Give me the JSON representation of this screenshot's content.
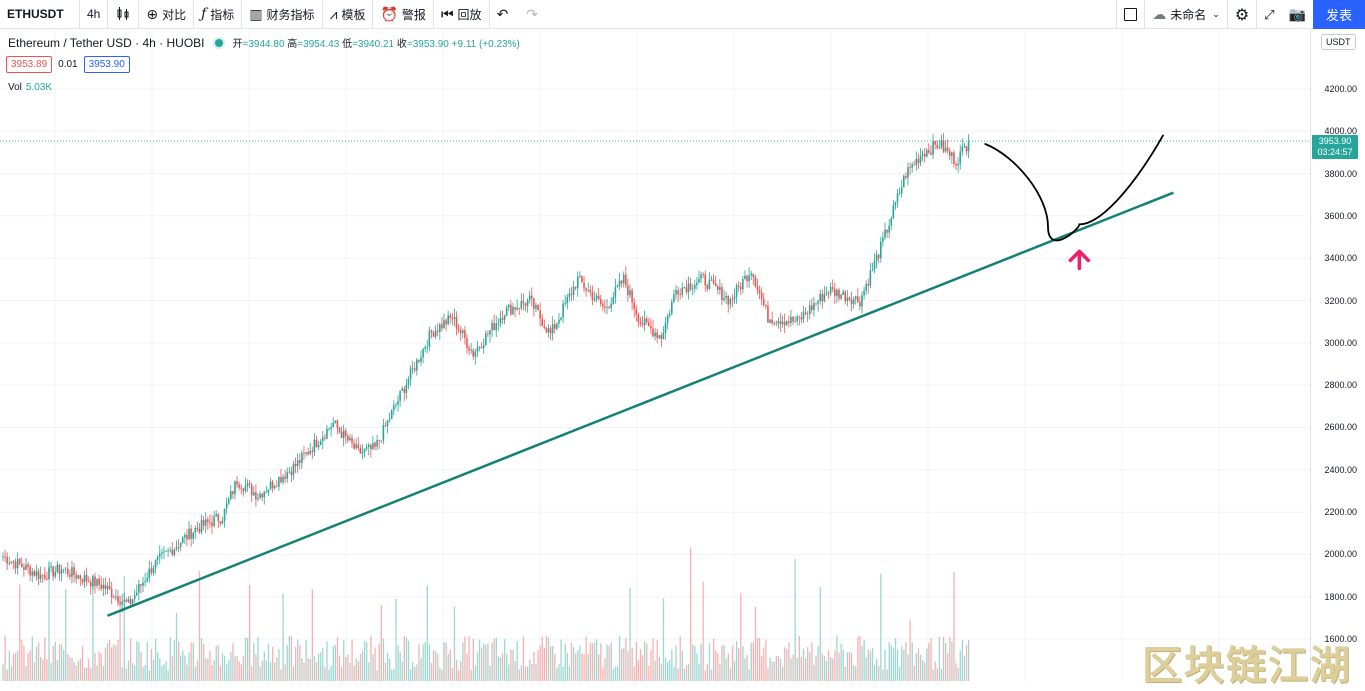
{
  "toolbar": {
    "symbol": "ETHUSDT",
    "interval": "4h",
    "compare": "对比",
    "indicators": "指标",
    "financials": "财务指标",
    "templates": "模板",
    "alert": "警报",
    "replay": "回放",
    "layout_name": "未命名",
    "publish": "发表"
  },
  "legend": {
    "title": "Ethereum / Tether USD · 4h · HUOBI",
    "open_label": "开",
    "open": "=3944.80",
    "high_label": "高",
    "high": "=3954.43",
    "low_label": "低",
    "low": "=3940.21",
    "close_label": "收",
    "close": "=3953.90",
    "change": "+9.11 (+0.23%)"
  },
  "quote": {
    "sell": "3953.89",
    "spread": "0.01",
    "buy": "3953.90"
  },
  "volume": {
    "label": "Vol",
    "value": "5.03K"
  },
  "axis": {
    "unit": "USDT",
    "last_price": "3953.90",
    "countdown": "03:24:57"
  },
  "watermark": "区块链江湖",
  "colors": {
    "up": "#26a69a",
    "down": "#ef5350",
    "trendline": "#138274",
    "arrow": "#ef1f6b",
    "path": "#000000",
    "accent": "#2962ff"
  },
  "chart_data": {
    "type": "candlestick",
    "ylim": [
      1560,
      4350
    ],
    "y_ticks": [
      1600,
      1800,
      2000,
      2200,
      2400,
      2600,
      2800,
      3000,
      3200,
      3400,
      3600,
      3800,
      4000,
      4200
    ],
    "last_price": 3953.9,
    "close_anchors": [
      [
        0,
        1990
      ],
      [
        18,
        1900
      ],
      [
        28,
        1930
      ],
      [
        48,
        1850
      ],
      [
        60,
        1760
      ],
      [
        72,
        1950
      ],
      [
        92,
        2120
      ],
      [
        105,
        2180
      ],
      [
        112,
        2350
      ],
      [
        122,
        2280
      ],
      [
        140,
        2420
      ],
      [
        158,
        2620
      ],
      [
        170,
        2480
      ],
      [
        178,
        2500
      ],
      [
        190,
        2750
      ],
      [
        205,
        3050
      ],
      [
        215,
        3120
      ],
      [
        225,
        2950
      ],
      [
        240,
        3150
      ],
      [
        252,
        3200
      ],
      [
        262,
        3040
      ],
      [
        275,
        3300
      ],
      [
        288,
        3160
      ],
      [
        297,
        3300
      ],
      [
        305,
        3100
      ],
      [
        315,
        3030
      ],
      [
        322,
        3250
      ],
      [
        335,
        3300
      ],
      [
        348,
        3200
      ],
      [
        358,
        3350
      ],
      [
        366,
        3120
      ],
      [
        380,
        3100
      ],
      [
        395,
        3250
      ],
      [
        410,
        3200
      ],
      [
        420,
        3450
      ],
      [
        432,
        3800
      ],
      [
        440,
        3900
      ],
      [
        448,
        3940
      ],
      [
        456,
        3860
      ],
      [
        462,
        3950
      ]
    ],
    "trendline": {
      "from": {
        "index": 50,
        "price": 1710
      },
      "to": {
        "index": 560,
        "price": 3710
      }
    },
    "projection": [
      [
        470,
        3940
      ],
      [
        485,
        3880
      ],
      [
        500,
        3550
      ],
      [
        515,
        3560
      ],
      [
        540,
        3720
      ],
      [
        555,
        3980
      ]
    ],
    "arrow_at": {
      "index": 515,
      "price": 3390
    }
  }
}
